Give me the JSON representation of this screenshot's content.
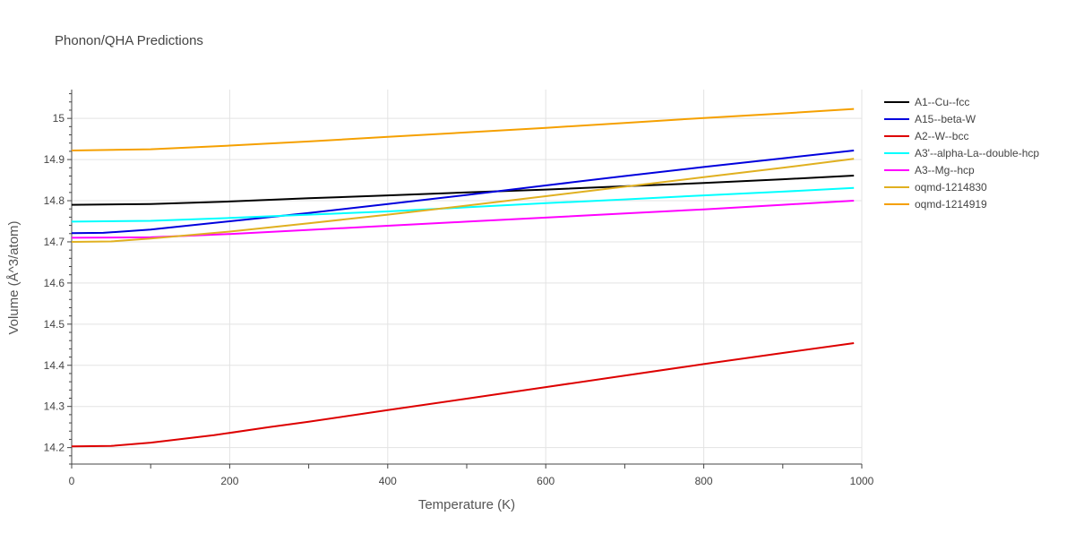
{
  "chart_data": {
    "type": "line",
    "title": "Phonon/QHA Predictions",
    "xlabel": "Temperature (K)",
    "ylabel": "Volume (Å^3/atom)",
    "xlim": [
      0,
      1000
    ],
    "ylim": [
      14.16,
      15.07
    ],
    "xticks": [
      0,
      200,
      400,
      600,
      800,
      1000
    ],
    "xtick_labels": [
      "0",
      "200",
      "400",
      "600",
      "800",
      "1000"
    ],
    "yticks": [
      14.2,
      14.3,
      14.4,
      14.5,
      14.6,
      14.7,
      14.8,
      14.9,
      15
    ],
    "ytick_labels": [
      "14.2",
      "14.3",
      "14.4",
      "14.5",
      "14.6",
      "14.7",
      "14.8",
      "14.9",
      "15"
    ],
    "grid": true,
    "legend_position": "top-right",
    "series": [
      {
        "name": "A1--Cu--fcc",
        "color": "#000000",
        "x": [
          0,
          100,
          200,
          300,
          400,
          500,
          600,
          700,
          800,
          900,
          990
        ],
        "y": [
          14.79,
          14.792,
          14.798,
          14.806,
          14.813,
          14.82,
          14.827,
          14.835,
          14.843,
          14.852,
          14.861
        ]
      },
      {
        "name": "A15--beta-W",
        "color": "#0000dd",
        "x": [
          0,
          40,
          100,
          200,
          300,
          400,
          500,
          600,
          700,
          800,
          900,
          990
        ],
        "y": [
          14.721,
          14.722,
          14.73,
          14.75,
          14.77,
          14.792,
          14.814,
          14.837,
          14.86,
          14.882,
          14.903,
          14.922
        ]
      },
      {
        "name": "A2--W--bcc",
        "color": "#dd0000",
        "x": [
          0,
          50,
          100,
          180,
          250,
          300,
          400,
          500,
          600,
          700,
          800,
          900,
          990
        ],
        "y": [
          14.203,
          14.204,
          14.212,
          14.23,
          14.25,
          14.263,
          14.291,
          14.319,
          14.347,
          14.375,
          14.403,
          14.43,
          14.454
        ]
      },
      {
        "name": "A3'--alpha-La--double-hcp",
        "color": "#00ffff",
        "x": [
          0,
          100,
          200,
          300,
          400,
          500,
          600,
          700,
          800,
          900,
          990
        ],
        "y": [
          14.749,
          14.751,
          14.758,
          14.766,
          14.774,
          14.784,
          14.794,
          14.803,
          14.813,
          14.822,
          14.831
        ]
      },
      {
        "name": "A3--Mg--hcp",
        "color": "#ff00ff",
        "x": [
          0,
          100,
          200,
          300,
          400,
          500,
          600,
          700,
          800,
          900,
          990
        ],
        "y": [
          14.71,
          14.711,
          14.719,
          14.729,
          14.739,
          14.749,
          14.759,
          14.769,
          14.779,
          14.79,
          14.8
        ]
      },
      {
        "name": "oqmd-1214830",
        "color": "#e0b020",
        "x": [
          0,
          50,
          100,
          200,
          300,
          400,
          500,
          600,
          700,
          800,
          900,
          990
        ],
        "y": [
          14.7,
          14.701,
          14.708,
          14.725,
          14.745,
          14.766,
          14.788,
          14.811,
          14.834,
          14.857,
          14.88,
          14.902
        ]
      },
      {
        "name": "oqmd-1214919",
        "color": "#f5a000",
        "x": [
          0,
          100,
          200,
          300,
          400,
          500,
          600,
          700,
          800,
          900,
          990
        ],
        "y": [
          14.922,
          14.925,
          14.934,
          14.944,
          14.955,
          14.966,
          14.977,
          14.989,
          15.001,
          15.012,
          15.023
        ]
      }
    ]
  }
}
